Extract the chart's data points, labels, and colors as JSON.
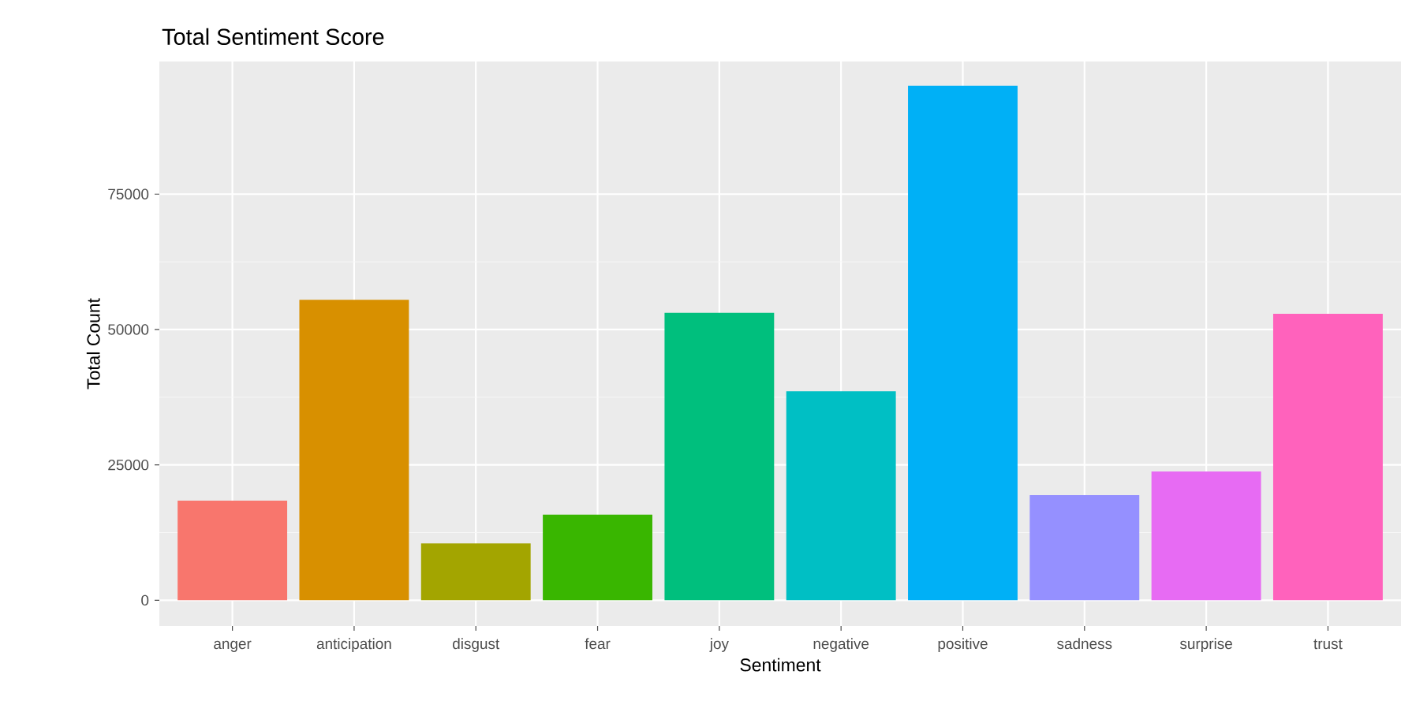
{
  "chart_data": {
    "type": "bar",
    "title": "Total Sentiment Score",
    "xlabel": "Sentiment",
    "ylabel": "Total Count",
    "categories": [
      "anger",
      "anticipation",
      "disgust",
      "fear",
      "joy",
      "negative",
      "positive",
      "sadness",
      "surprise",
      "trust"
    ],
    "values": [
      18400,
      55500,
      10500,
      15800,
      53100,
      38600,
      95000,
      19400,
      23800,
      52900
    ],
    "colors": [
      "#f8766d",
      "#d89000",
      "#a3a500",
      "#39b600",
      "#00bf7d",
      "#00bfc4",
      "#00b0f6",
      "#9590ff",
      "#e76bf3",
      "#ff62bc"
    ],
    "ylim": [
      -4750,
      99500
    ],
    "yticks": [
      0,
      25000,
      50000,
      75000
    ],
    "grid": true
  }
}
